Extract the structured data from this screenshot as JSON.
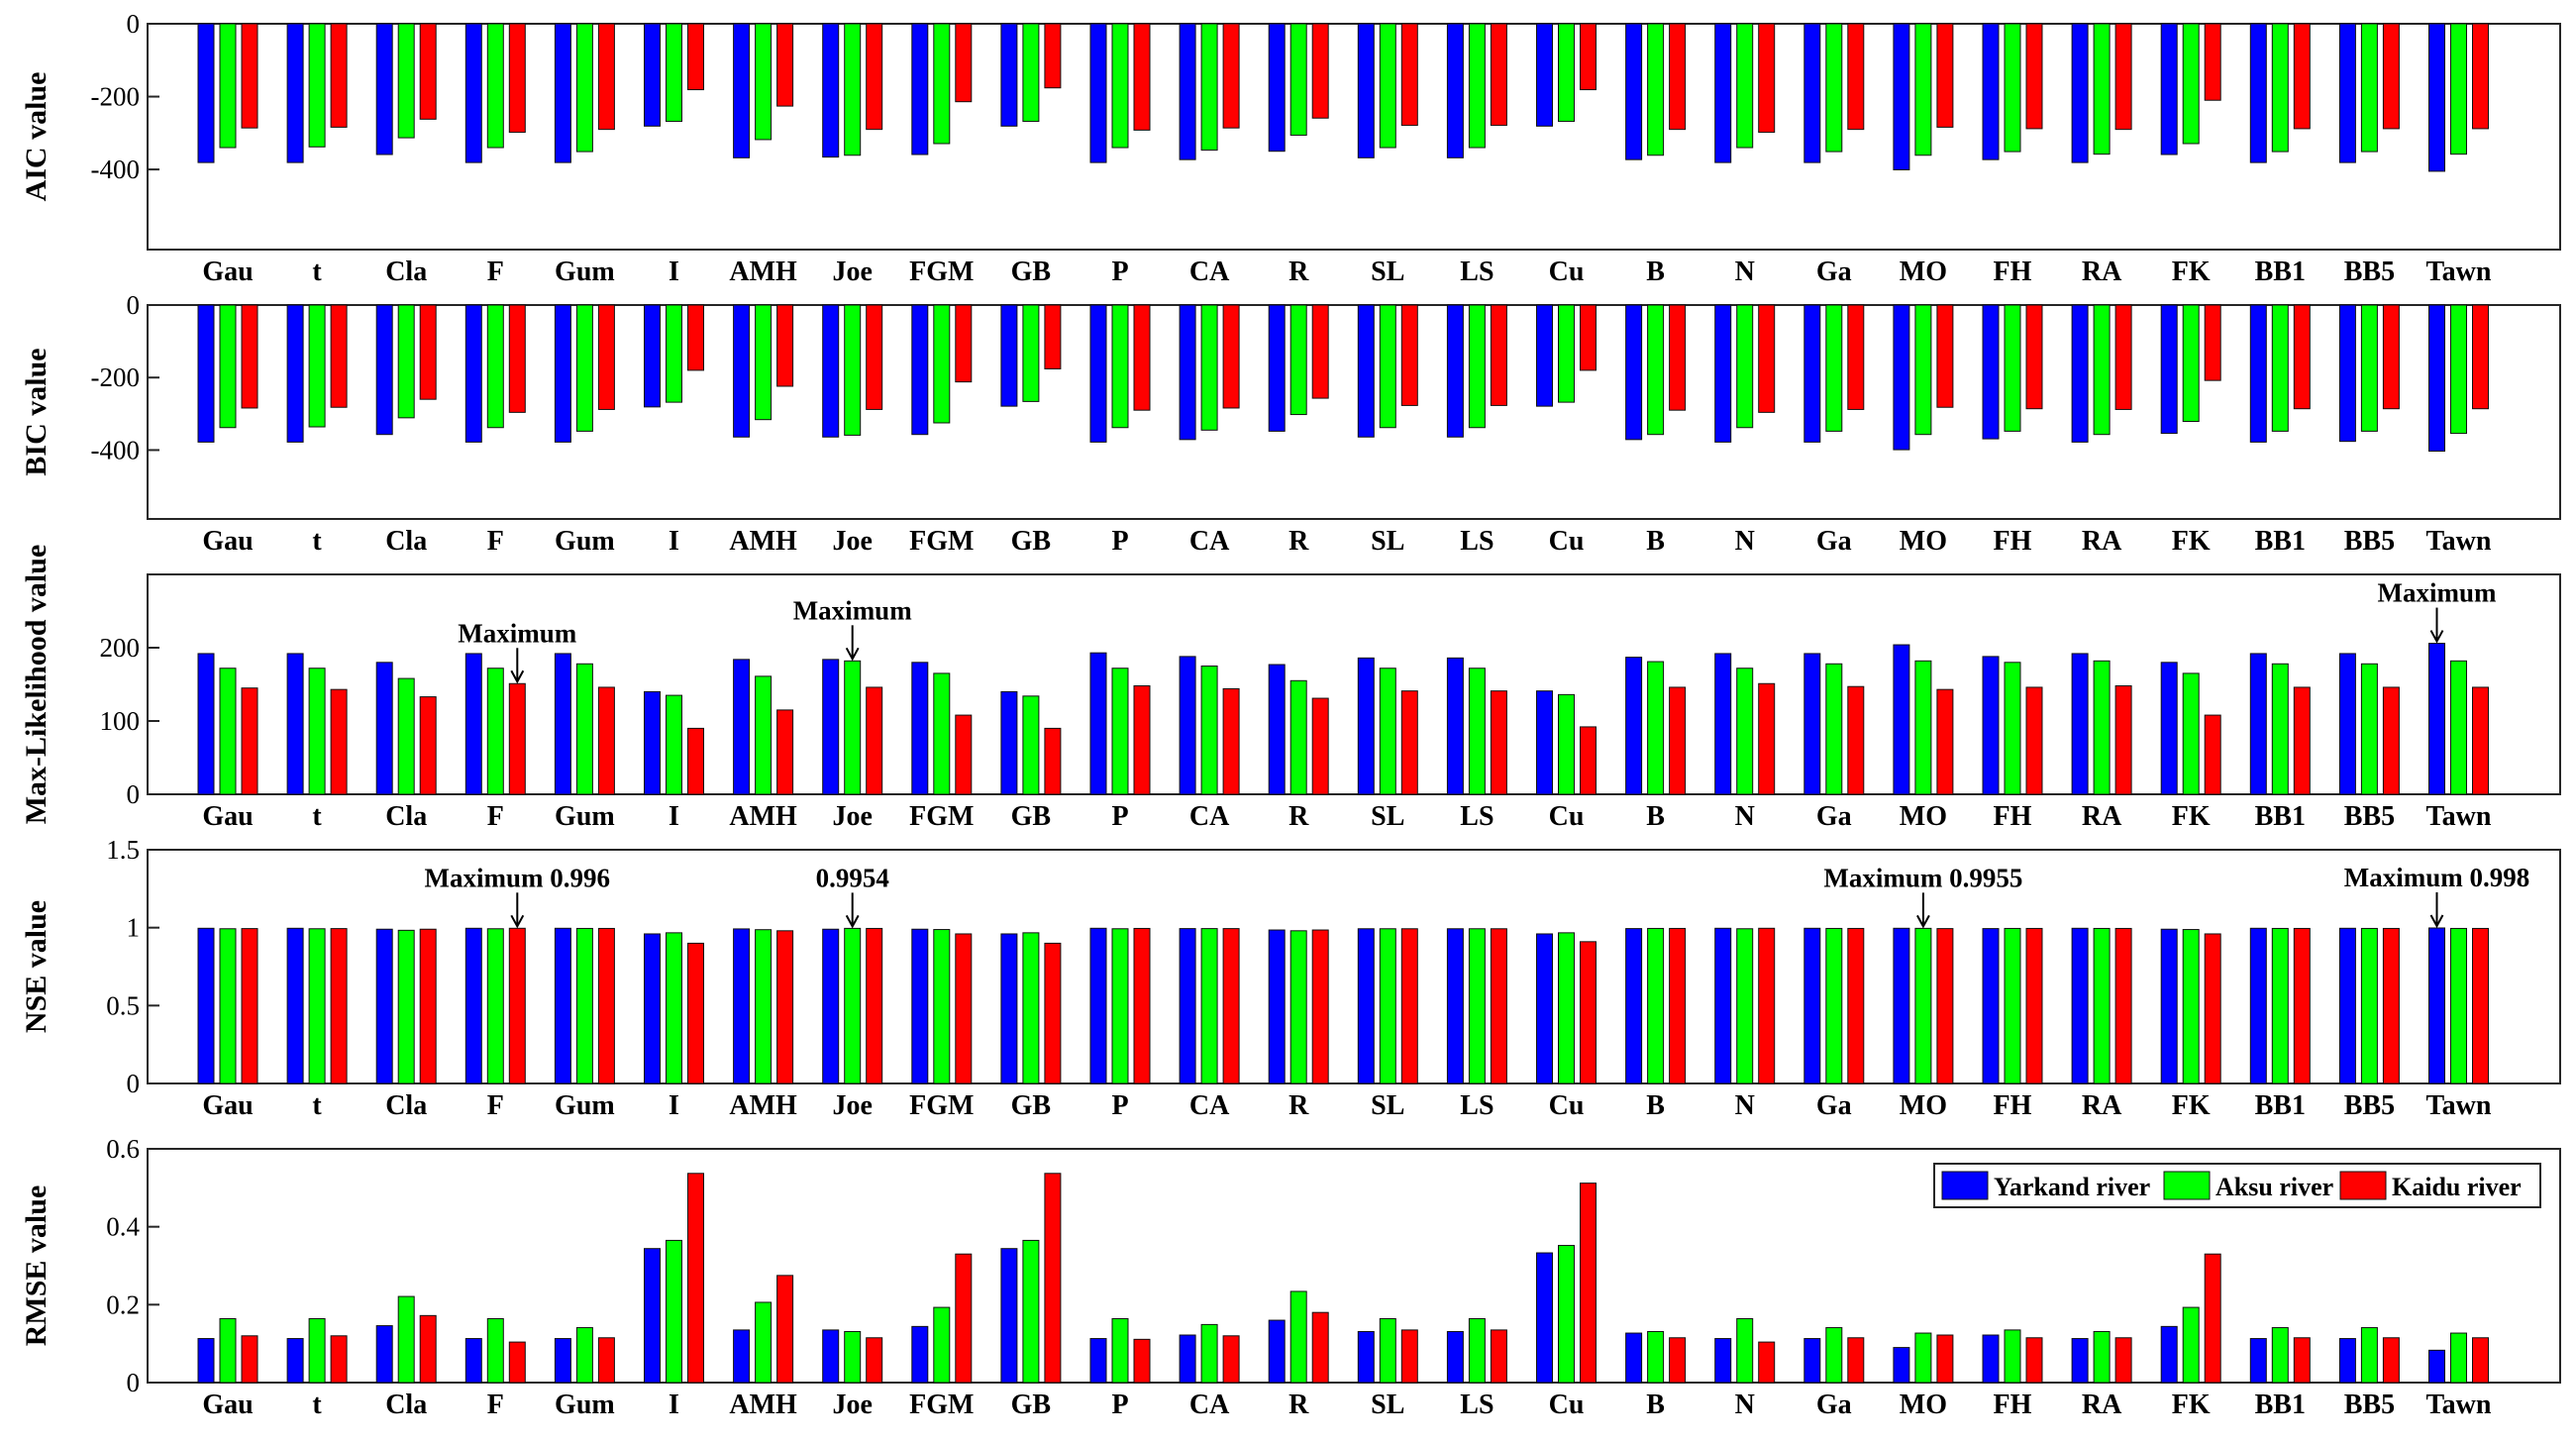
{
  "chart_data": [
    {
      "type": "bar",
      "ylabel": "AIC value",
      "ylim": [
        -620,
        0
      ],
      "yticks": [
        0,
        -200,
        -400
      ],
      "categories": [
        "Gau",
        "t",
        "Cla",
        "F",
        "Gum",
        "I",
        "AMH",
        "Joe",
        "FGM",
        "GB",
        "P",
        "CA",
        "R",
        "SL",
        "LS",
        "Cu",
        "B",
        "N",
        "Ga",
        "MO",
        "FH",
        "RA",
        "FK",
        "BB1",
        "BB5",
        "Tawn"
      ],
      "series": [
        {
          "name": "Yarkand river",
          "color": "#0000ff",
          "values": [
            -381,
            -381,
            -359,
            -381,
            -381,
            -281,
            -368,
            -366,
            -359,
            -281,
            -381,
            -373,
            -350,
            -368,
            -368,
            -281,
            -373,
            -381,
            -381,
            -401,
            -373,
            -381,
            -359,
            -381,
            -381,
            -405
          ]
        },
        {
          "name": "Aksu river",
          "color": "#00ff00",
          "values": [
            -340,
            -338,
            -313,
            -340,
            -351,
            -268,
            -318,
            -361,
            -329,
            -268,
            -340,
            -347,
            -306,
            -340,
            -340,
            -268,
            -361,
            -340,
            -351,
            -361,
            -351,
            -358,
            -329,
            -351,
            -351,
            -358
          ]
        },
        {
          "name": "Kaidu river",
          "color": "#ff0000",
          "values": [
            -286,
            -284,
            -262,
            -298,
            -290,
            -181,
            -226,
            -290,
            -214,
            -176,
            -292,
            -286,
            -259,
            -279,
            -279,
            -181,
            -290,
            -298,
            -290,
            -284,
            -288,
            -290,
            -210,
            -288,
            -288,
            -288
          ]
        }
      ]
    },
    {
      "type": "bar",
      "ylabel": "BIC value",
      "ylim": [
        -590,
        0
      ],
      "yticks": [
        0,
        -200,
        -400
      ],
      "categories": [
        "Gau",
        "t",
        "Cla",
        "F",
        "Gum",
        "I",
        "AMH",
        "Joe",
        "FGM",
        "GB",
        "P",
        "CA",
        "R",
        "SL",
        "LS",
        "Cu",
        "B",
        "N",
        "Ga",
        "MO",
        "FH",
        "RA",
        "FK",
        "BB1",
        "BB5",
        "Tawn"
      ],
      "series": [
        {
          "name": "Yarkand river",
          "color": "#0000ff",
          "values": [
            -378,
            -378,
            -357,
            -378,
            -378,
            -281,
            -364,
            -364,
            -357,
            -279,
            -378,
            -371,
            -348,
            -364,
            -364,
            -279,
            -371,
            -378,
            -378,
            -399,
            -369,
            -378,
            -354,
            -378,
            -376,
            -403
          ]
        },
        {
          "name": "Aksu river",
          "color": "#00ff00",
          "values": [
            -338,
            -336,
            -311,
            -338,
            -348,
            -268,
            -316,
            -359,
            -325,
            -266,
            -338,
            -345,
            -302,
            -338,
            -338,
            -268,
            -357,
            -338,
            -348,
            -357,
            -348,
            -357,
            -321,
            -348,
            -348,
            -354
          ]
        },
        {
          "name": "Kaidu river",
          "color": "#ff0000",
          "values": [
            -284,
            -282,
            -260,
            -296,
            -288,
            -180,
            -224,
            -288,
            -212,
            -176,
            -290,
            -284,
            -257,
            -277,
            -277,
            -180,
            -290,
            -296,
            -288,
            -282,
            -286,
            -288,
            -208,
            -286,
            -286,
            -286
          ]
        }
      ]
    },
    {
      "type": "bar",
      "ylabel": "Max-Likelihood value",
      "ylim": [
        0,
        300
      ],
      "yticks": [
        0,
        100,
        200
      ],
      "categories": [
        "Gau",
        "t",
        "Cla",
        "F",
        "Gum",
        "I",
        "AMH",
        "Joe",
        "FGM",
        "GB",
        "P",
        "CA",
        "R",
        "SL",
        "LS",
        "Cu",
        "B",
        "N",
        "Ga",
        "MO",
        "FH",
        "RA",
        "FK",
        "BB1",
        "BB5",
        "Tawn"
      ],
      "series": [
        {
          "name": "Yarkand river",
          "color": "#0000ff",
          "values": [
            192,
            192,
            180,
            192,
            192,
            140,
            184,
            184,
            180,
            140,
            193,
            188,
            177,
            186,
            186,
            141,
            187,
            192,
            192,
            204,
            188,
            192,
            180,
            192,
            192,
            206
          ]
        },
        {
          "name": "Aksu river",
          "color": "#00ff00",
          "values": [
            172,
            172,
            158,
            172,
            178,
            135,
            161,
            182,
            165,
            134,
            172,
            175,
            155,
            172,
            172,
            136,
            181,
            172,
            178,
            182,
            180,
            182,
            165,
            178,
            178,
            182
          ]
        },
        {
          "name": "Kaidu river",
          "color": "#ff0000",
          "values": [
            145,
            143,
            133,
            151,
            146,
            90,
            115,
            146,
            108,
            90,
            148,
            144,
            131,
            141,
            141,
            92,
            146,
            151,
            147,
            143,
            146,
            148,
            108,
            146,
            146,
            146
          ]
        }
      ],
      "annotations": [
        {
          "text": "Maximum",
          "category": "F",
          "series": 2
        },
        {
          "text": "Maximum",
          "category": "Joe",
          "series": 1
        },
        {
          "text": "Maximum",
          "category": "Tawn",
          "series": 0
        }
      ]
    },
    {
      "type": "bar",
      "ylabel": "NSE value",
      "ylim": [
        0,
        1.5
      ],
      "yticks": [
        0,
        0.5,
        1,
        1.5
      ],
      "categories": [
        "Gau",
        "t",
        "Cla",
        "F",
        "Gum",
        "I",
        "AMH",
        "Joe",
        "FGM",
        "GB",
        "P",
        "CA",
        "R",
        "SL",
        "LS",
        "Cu",
        "B",
        "N",
        "Ga",
        "MO",
        "FH",
        "RA",
        "FK",
        "BB1",
        "BB5",
        "Tawn"
      ],
      "series": [
        {
          "name": "Yarkand river",
          "color": "#0000ff",
          "values": [
            0.996,
            0.996,
            0.99,
            0.996,
            0.996,
            0.96,
            0.992,
            0.99,
            0.99,
            0.96,
            0.996,
            0.994,
            0.985,
            0.993,
            0.993,
            0.96,
            0.994,
            0.996,
            0.996,
            0.996,
            0.994,
            0.996,
            0.99,
            0.996,
            0.996,
            0.998
          ]
        },
        {
          "name": "Aksu river",
          "color": "#00ff00",
          "values": [
            0.993,
            0.993,
            0.983,
            0.993,
            0.995,
            0.967,
            0.987,
            0.9954,
            0.988,
            0.967,
            0.993,
            0.994,
            0.98,
            0.993,
            0.993,
            0.967,
            0.995,
            0.993,
            0.995,
            0.9955,
            0.995,
            0.995,
            0.988,
            0.995,
            0.995,
            0.995
          ]
        },
        {
          "name": "Kaidu river",
          "color": "#ff0000",
          "values": [
            0.994,
            0.994,
            0.99,
            0.996,
            0.995,
            0.9,
            0.98,
            0.995,
            0.96,
            0.9,
            0.995,
            0.994,
            0.985,
            0.993,
            0.993,
            0.91,
            0.995,
            0.996,
            0.995,
            0.994,
            0.995,
            0.995,
            0.96,
            0.995,
            0.995,
            0.995
          ]
        }
      ],
      "annotations": [
        {
          "text": "Maximum 0.996",
          "category": "F",
          "series": 2
        },
        {
          "text": "0.9954",
          "category": "Joe",
          "series": 1
        },
        {
          "text": "Maximum 0.9955",
          "category": "MO",
          "series": 1
        },
        {
          "text": "Maximum 0.998",
          "category": "Tawn",
          "series": 0
        }
      ]
    },
    {
      "type": "bar",
      "ylabel": "RMSE value",
      "ylim": [
        0,
        0.6
      ],
      "yticks": [
        0,
        0.2,
        0.4,
        0.6
      ],
      "categories": [
        "Gau",
        "t",
        "Cla",
        "F",
        "Gum",
        "I",
        "AMH",
        "Joe",
        "FGM",
        "GB",
        "P",
        "CA",
        "R",
        "SL",
        "LS",
        "Cu",
        "B",
        "N",
        "Ga",
        "MO",
        "FH",
        "RA",
        "FK",
        "BB1",
        "BB5",
        "Tawn"
      ],
      "series": [
        {
          "name": "Yarkand river",
          "color": "#0000ff",
          "values": [
            0.113,
            0.113,
            0.146,
            0.113,
            0.113,
            0.344,
            0.135,
            0.135,
            0.144,
            0.344,
            0.113,
            0.122,
            0.16,
            0.131,
            0.131,
            0.333,
            0.127,
            0.113,
            0.113,
            0.09,
            0.122,
            0.113,
            0.144,
            0.113,
            0.113,
            0.083
          ]
        },
        {
          "name": "Aksu river",
          "color": "#00ff00",
          "values": [
            0.164,
            0.164,
            0.221,
            0.164,
            0.141,
            0.365,
            0.206,
            0.131,
            0.193,
            0.365,
            0.164,
            0.149,
            0.234,
            0.164,
            0.164,
            0.352,
            0.131,
            0.164,
            0.141,
            0.127,
            0.135,
            0.131,
            0.193,
            0.141,
            0.141,
            0.127
          ]
        },
        {
          "name": "Kaidu river",
          "color": "#ff0000",
          "values": [
            0.12,
            0.12,
            0.172,
            0.104,
            0.115,
            0.537,
            0.275,
            0.115,
            0.33,
            0.537,
            0.111,
            0.12,
            0.18,
            0.135,
            0.135,
            0.512,
            0.115,
            0.104,
            0.115,
            0.122,
            0.115,
            0.115,
            0.33,
            0.115,
            0.115,
            0.115
          ]
        }
      ],
      "legend": {
        "position": "top-right",
        "entries": [
          {
            "label": "Yarkand river",
            "color": "#0000ff"
          },
          {
            "label": "Aksu river",
            "color": "#00ff00"
          },
          {
            "label": "Kaidu river",
            "color": "#ff0000"
          }
        ]
      }
    }
  ]
}
